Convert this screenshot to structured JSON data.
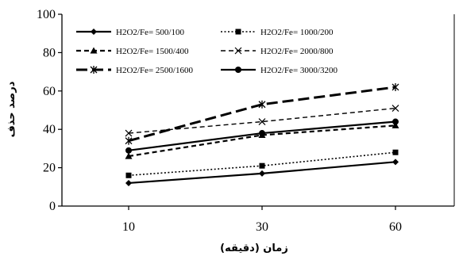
{
  "chart_data": {
    "type": "line",
    "x": [
      10,
      30,
      60
    ],
    "categories": [
      "10",
      "30",
      "60"
    ],
    "xlabel": "زمان (دقیقه)",
    "ylabel": "درصد حذف",
    "ylim": [
      0,
      100
    ],
    "yticks": [
      0,
      20,
      40,
      60,
      80,
      100
    ],
    "grid": false,
    "legend_position": "top",
    "series": [
      {
        "name": "H2O2/Fe= 500/100",
        "values": [
          12,
          17,
          23
        ],
        "dash": "solid",
        "marker": "diamond",
        "width": 2.2
      },
      {
        "name": "H2O2/Fe= 1000/200",
        "values": [
          16,
          21,
          28
        ],
        "dash": "dotted",
        "marker": "square",
        "width": 1.6
      },
      {
        "name": "H2O2/Fe= 1500/400",
        "values": [
          26,
          37,
          42
        ],
        "dash": "dashed",
        "marker": "triangle",
        "width": 2.2
      },
      {
        "name": "H2O2/Fe= 2000/800",
        "values": [
          38,
          44,
          51
        ],
        "dash": "dashed",
        "marker": "x",
        "width": 1.4
      },
      {
        "name": "H2O2/Fe= 2500/1600",
        "values": [
          34,
          53,
          62
        ],
        "dash": "longdash",
        "marker": "star",
        "width": 3
      },
      {
        "name": "H2O2/Fe= 3000/3200",
        "values": [
          29,
          38,
          44
        ],
        "dash": "solid",
        "marker": "circle",
        "width": 2.2
      }
    ]
  }
}
